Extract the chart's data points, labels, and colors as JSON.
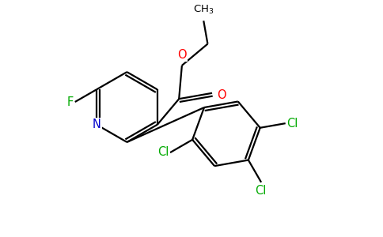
{
  "background_color": "#ffffff",
  "atom_colors": {
    "C": "#000000",
    "N": "#0000cc",
    "O": "#ff0000",
    "F": "#00aa00",
    "Cl": "#00aa00"
  },
  "line_color": "#000000",
  "linewidth": 1.6,
  "figsize": [
    4.84,
    3.0
  ],
  "dpi": 100,
  "xlim": [
    0,
    9.68
  ],
  "ylim": [
    0,
    6.0
  ]
}
